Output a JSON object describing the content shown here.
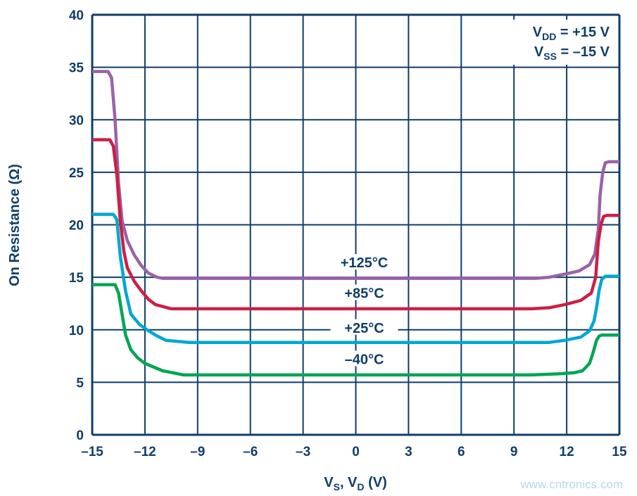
{
  "chart_data": {
    "type": "line",
    "title": "",
    "xlabel": {
      "main": "V",
      "sub1": "S",
      "sep": ", V",
      "sub2": "D",
      "unit": " (V)"
    },
    "ylabel": "On Resistance (Ω)",
    "xlim": [
      -15,
      15
    ],
    "ylim": [
      0,
      40
    ],
    "grid": true,
    "x_ticks": [
      "–15",
      "–12",
      "–9",
      "–6",
      "–3",
      "0",
      "3",
      "6",
      "9",
      "12",
      "15"
    ],
    "x_tick_values": [
      -15,
      -12,
      -9,
      -6,
      -3,
      0,
      3,
      6,
      9,
      12,
      15
    ],
    "y_ticks": [
      "0",
      "5",
      "10",
      "15",
      "20",
      "25",
      "30",
      "35",
      "40"
    ],
    "y_tick_values": [
      0,
      5,
      10,
      15,
      20,
      25,
      30,
      35,
      40
    ],
    "annotation": {
      "line1": {
        "main": "V",
        "sub": "DD",
        "rest": " = +15 V"
      },
      "line2": {
        "main": "V",
        "sub": "SS",
        "rest": " = –15 V"
      }
    },
    "series": [
      {
        "name": "+125°C",
        "color": "#9b62a8",
        "label_at": [
          0,
          16.2
        ],
        "x": [
          -15,
          -14.1,
          -13.9,
          -13.7,
          -13.5,
          -13.3,
          -13.0,
          -12.6,
          -12.2,
          -11.8,
          -11.3,
          -11.0,
          -5,
          0,
          5,
          10.2,
          11.0,
          11.9,
          12.7,
          13.3,
          13.6,
          13.8,
          13.9,
          14.05,
          14.2,
          14.4,
          15
        ],
        "y": [
          34.6,
          34.6,
          34.0,
          30.0,
          24.0,
          20.4,
          18.5,
          17.1,
          16.1,
          15.4,
          15.0,
          14.9,
          14.9,
          14.9,
          14.9,
          14.9,
          15.0,
          15.3,
          15.6,
          16.2,
          17.2,
          19.5,
          22.8,
          25.0,
          25.9,
          26.0,
          26.0
        ]
      },
      {
        "name": "+85°C",
        "color": "#cc1f44",
        "label_at": [
          0,
          13.3
        ],
        "x": [
          -15,
          -14.0,
          -13.8,
          -13.6,
          -13.4,
          -13.2,
          -13.0,
          -12.6,
          -12.2,
          -11.8,
          -11.4,
          -10.5,
          -5,
          0,
          5,
          10.0,
          11.0,
          11.9,
          12.8,
          13.4,
          13.65,
          13.8,
          13.95,
          14.1,
          14.3,
          15
        ],
        "y": [
          28.1,
          28.1,
          27.5,
          24.8,
          20.4,
          17.5,
          15.9,
          14.6,
          13.7,
          12.9,
          12.4,
          12.0,
          12.0,
          12.0,
          12.0,
          12.0,
          12.1,
          12.4,
          12.8,
          13.5,
          15.0,
          18.4,
          20.0,
          20.8,
          20.9,
          20.9
        ],
        "dummy": null
      },
      {
        "name": "+25°C",
        "color": "#00a7d4",
        "label_at": [
          0,
          10.0
        ],
        "x": [
          -15,
          -13.8,
          -13.6,
          -13.4,
          -13.2,
          -13.1,
          -12.8,
          -12.3,
          -11.8,
          -11.3,
          -10.8,
          -9.5,
          -5,
          0,
          5,
          10.0,
          11.0,
          11.9,
          12.8,
          13.3,
          13.55,
          13.7,
          13.85,
          14.0,
          14.2,
          15
        ],
        "y": [
          21.0,
          21.0,
          20.5,
          17.0,
          14.8,
          13.7,
          11.5,
          10.5,
          9.9,
          9.4,
          9.0,
          8.8,
          8.8,
          8.8,
          8.8,
          8.8,
          8.8,
          9.0,
          9.3,
          9.9,
          10.8,
          12.1,
          13.8,
          14.8,
          15.1,
          15.1
        ]
      },
      {
        "name": "–40°C",
        "color": "#00a651",
        "label_at": [
          0,
          7.0
        ],
        "x": [
          -15,
          -13.7,
          -13.5,
          -13.3,
          -13.1,
          -12.8,
          -12.4,
          -12.0,
          -11.0,
          -9.8,
          -5,
          0,
          5,
          10.0,
          11.5,
          12.4,
          12.9,
          13.3,
          13.5,
          13.7,
          13.85,
          14.0,
          14.2,
          15
        ],
        "y": [
          14.3,
          14.3,
          13.5,
          11.5,
          9.5,
          8.1,
          7.3,
          6.8,
          6.1,
          5.7,
          5.7,
          5.7,
          5.7,
          5.7,
          5.8,
          5.9,
          6.1,
          6.8,
          7.8,
          9.0,
          9.4,
          9.5,
          9.5,
          9.5
        ]
      }
    ]
  },
  "watermark": "www.cntronics.com"
}
